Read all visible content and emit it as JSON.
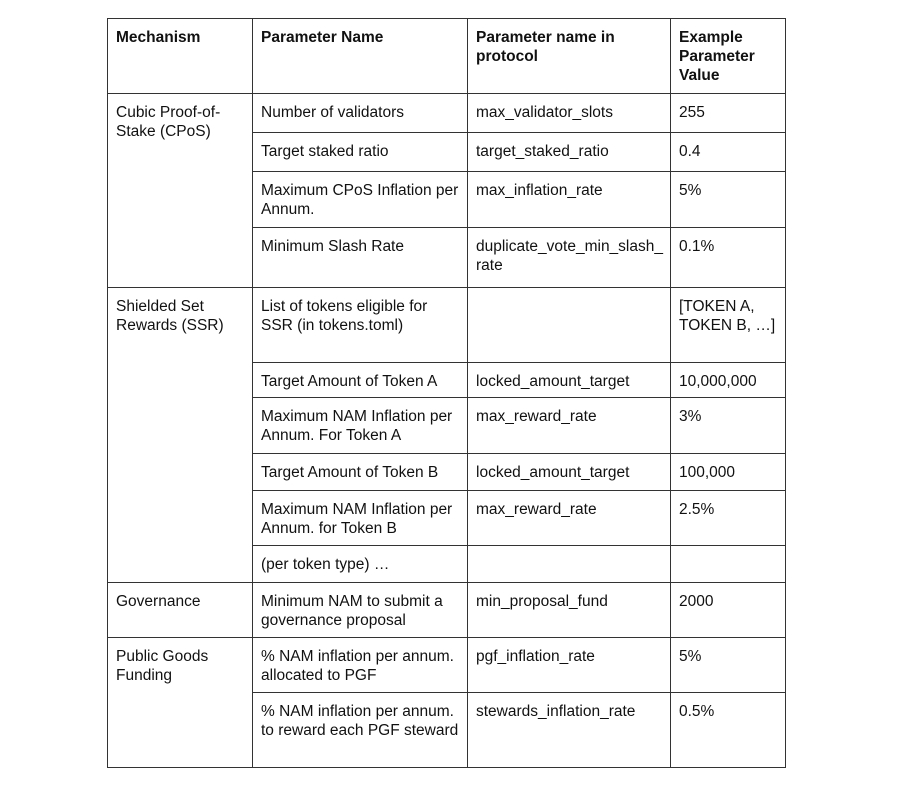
{
  "headers": [
    "Mechanism",
    "Parameter Name",
    "Parameter name in protocol",
    "Example Parameter Value"
  ],
  "groups": [
    {
      "mechanism": "Cubic Proof-of-Stake (CPoS)",
      "rows": [
        {
          "name": "Number of validators",
          "protocol": "max_validator_slots",
          "value": "255"
        },
        {
          "name": "Target staked ratio",
          "protocol": "target_staked_ratio",
          "value": "0.4"
        },
        {
          "name": "Maximum CPoS Inflation per Annum.",
          "protocol": "max_inflation_rate",
          "value": "5%"
        },
        {
          "name": "Minimum Slash Rate",
          "protocol": "duplicate_vote_min_slash_rate",
          "value": "0.1%"
        }
      ]
    },
    {
      "mechanism": "Shielded Set Rewards (SSR)",
      "rows": [
        {
          "name": "List of tokens eligible for SSR (in tokens.toml)",
          "protocol": "",
          "value": "[TOKEN A, TOKEN B, …]"
        },
        {
          "name": "Target Amount of Token A",
          "protocol": "locked_amount_target",
          "value": "10,000,000"
        },
        {
          "name": "Maximum NAM Inflation per Annum. For Token A",
          "protocol": "max_reward_rate",
          "value": "3%"
        },
        {
          "name": "Target Amount of Token B",
          "protocol": "locked_amount_target",
          "value": "100,000"
        },
        {
          "name": "Maximum NAM Inflation per Annum. for Token B",
          "protocol": "max_reward_rate",
          "value": "2.5%"
        },
        {
          "name": "(per token type) …",
          "protocol": "",
          "value": ""
        }
      ]
    },
    {
      "mechanism": "Governance",
      "rows": [
        {
          "name": "Minimum NAM to submit a governance proposal",
          "protocol": "min_proposal_fund",
          "value": "2000"
        }
      ]
    },
    {
      "mechanism": "Public Goods Funding",
      "rows": [
        {
          "name": "% NAM inflation per annum. allocated to PGF",
          "protocol": "pgf_inflation_rate",
          "value": "5%"
        },
        {
          "name": "% NAM inflation per annum. to reward each PGF steward",
          "protocol": "stewards_inflation_rate",
          "value": "0.5%"
        }
      ]
    }
  ]
}
